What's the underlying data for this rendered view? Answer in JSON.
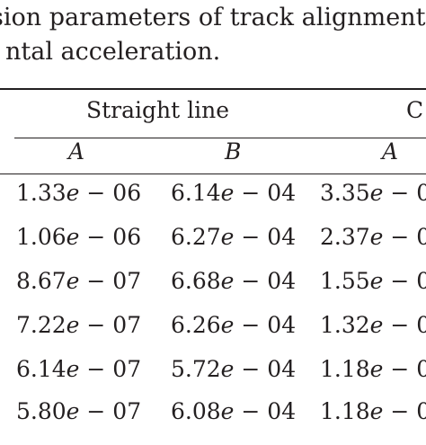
{
  "caption": {
    "line1": "sion parameters of track alignment",
    "line2": "ntal acceleration."
  },
  "table": {
    "group_headers": [
      "Straight line",
      "C"
    ],
    "sub_headers": [
      "A",
      "B",
      "A"
    ],
    "rows": [
      [
        "1.33e − 06",
        "6.14e − 04",
        "3.35e − 0"
      ],
      [
        "1.06e − 06",
        "6.27e − 04",
        "2.37e − 0"
      ],
      [
        "8.67e − 07",
        "6.68e − 04",
        "1.55e − 0"
      ],
      [
        "7.22e − 07",
        "6.26e − 04",
        "1.32e − 0"
      ],
      [
        "6.14e − 07",
        "5.72e − 04",
        "1.18e − 0"
      ],
      [
        "5.80e − 07",
        "6.08e − 04",
        "1.18e − 0"
      ]
    ]
  }
}
